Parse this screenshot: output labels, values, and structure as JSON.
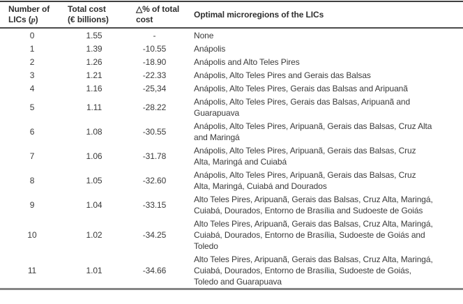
{
  "table": {
    "headers": {
      "col1_prefix": "Number of LICs (",
      "col1_var": "p",
      "col1_suffix": ")",
      "col2": "Total cost (€ billions)",
      "col3": "△% of total cost",
      "col4": "Optimal microregions of the LICs"
    },
    "rows": [
      {
        "p": "0",
        "cost": "1.55",
        "delta": "-",
        "regions": "None"
      },
      {
        "p": "1",
        "cost": "1.39",
        "delta": "-10.55",
        "regions": "Anápolis"
      },
      {
        "p": "2",
        "cost": "1.26",
        "delta": "-18.90",
        "regions": "Anápolis and Alto Teles Pires"
      },
      {
        "p": "3",
        "cost": "1.21",
        "delta": "-22.33",
        "regions": "Anápolis, Alto Teles Pires and Gerais das Balsas"
      },
      {
        "p": "4",
        "cost": "1.16",
        "delta": "-25,34",
        "regions": "Anápolis, Alto Teles Pires, Gerais das Balsas and Aripuanã"
      },
      {
        "p": "5",
        "cost": "1.11",
        "delta": "-28.22",
        "regions": "Anápolis, Alto Teles Pires, Gerais das Balsas, Aripuanã and Guarapuava"
      },
      {
        "p": "6",
        "cost": "1.08",
        "delta": "-30.55",
        "regions": "Anápolis, Alto Teles Pires, Aripuanã, Gerais das Balsas, Cruz Alta and Maringá"
      },
      {
        "p": "7",
        "cost": "1.06",
        "delta": "-31.78",
        "regions": "Anápolis, Alto Teles Pires, Aripuanã, Gerais das Balsas, Cruz Alta, Maringá and Cuiabá"
      },
      {
        "p": "8",
        "cost": "1.05",
        "delta": "-32.60",
        "regions": "Anápolis, Alto Teles Pires, Aripuanã, Gerais das Balsas, Cruz Alta, Maringá, Cuiabá and Dourados"
      },
      {
        "p": "9",
        "cost": "1.04",
        "delta": "-33.15",
        "regions": "Alto Teles Pires, Aripuanã, Gerais das Balsas, Cruz Alta, Maringá, Cuiabá, Dourados, Entorno de Brasília and Sudoeste de Goiás"
      },
      {
        "p": "10",
        "cost": "1.02",
        "delta": "-34.25",
        "regions": "Alto Teles Pires, Aripuanã, Gerais das Balsas, Cruz Alta, Maringá, Cuiabá, Dourados, Entorno de Brasília, Sudoeste de Goiás and Toledo"
      },
      {
        "p": "11",
        "cost": "1.01",
        "delta": "-34.66",
        "regions": "Alto Teles Pires, Aripuanã, Gerais das Balsas, Cruz Alta, Maringá, Cuiabá, Dourados, Entorno de Brasília, Sudoeste de Goiás, Toledo and Guarapuava"
      }
    ]
  },
  "colors": {
    "text": "#3a3a3a",
    "rule_top": "#3f3f3f",
    "rule_header": "#4a4a4a",
    "rule_bottom": "#858585"
  }
}
